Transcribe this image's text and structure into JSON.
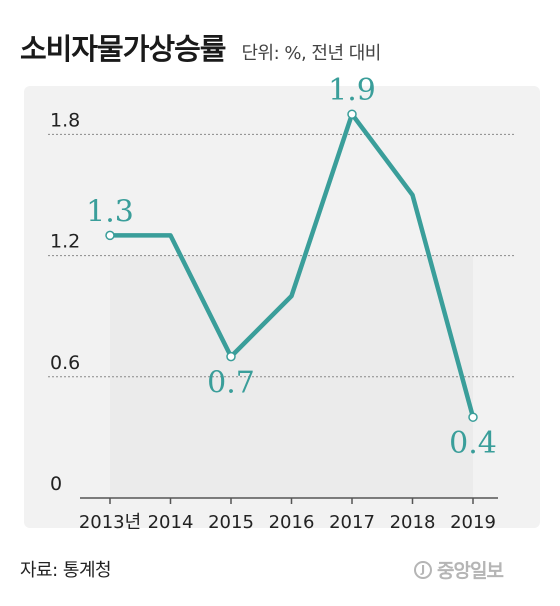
{
  "header": {
    "title": "소비자물가상승률",
    "unit": "단위: %, 전년 대비"
  },
  "footer": {
    "source": "자료: 통계청",
    "logo": "중앙일보",
    "logo_mark": "J"
  },
  "colors": {
    "line": "#3a9e9a",
    "label": "#3a9e9a",
    "area": "#ebebeb",
    "panel": "#f2f2f2",
    "grid": "#8a8a8a"
  },
  "chart_data": {
    "type": "line",
    "title": "소비자물가상승률",
    "categories": [
      "2013년",
      "2014",
      "2015",
      "2016",
      "2017",
      "2018",
      "2019"
    ],
    "series": [
      {
        "values": [
          1.3,
          1.3,
          0.7,
          1.0,
          1.9,
          1.5,
          0.4
        ]
      }
    ],
    "data_labels": [
      {
        "index": 0,
        "text": "1.3",
        "position": "above"
      },
      {
        "index": 2,
        "text": "0.7",
        "position": "below"
      },
      {
        "index": 4,
        "text": "1.9",
        "position": "above"
      },
      {
        "index": 6,
        "text": "0.4",
        "position": "below"
      }
    ],
    "yticks": [
      "0",
      "0.6",
      "1.2",
      "1.8"
    ],
    "ytick_values": [
      0,
      0.6,
      1.2,
      1.8
    ],
    "ylim": [
      0,
      2.1
    ],
    "grid": true,
    "legend": "none"
  }
}
